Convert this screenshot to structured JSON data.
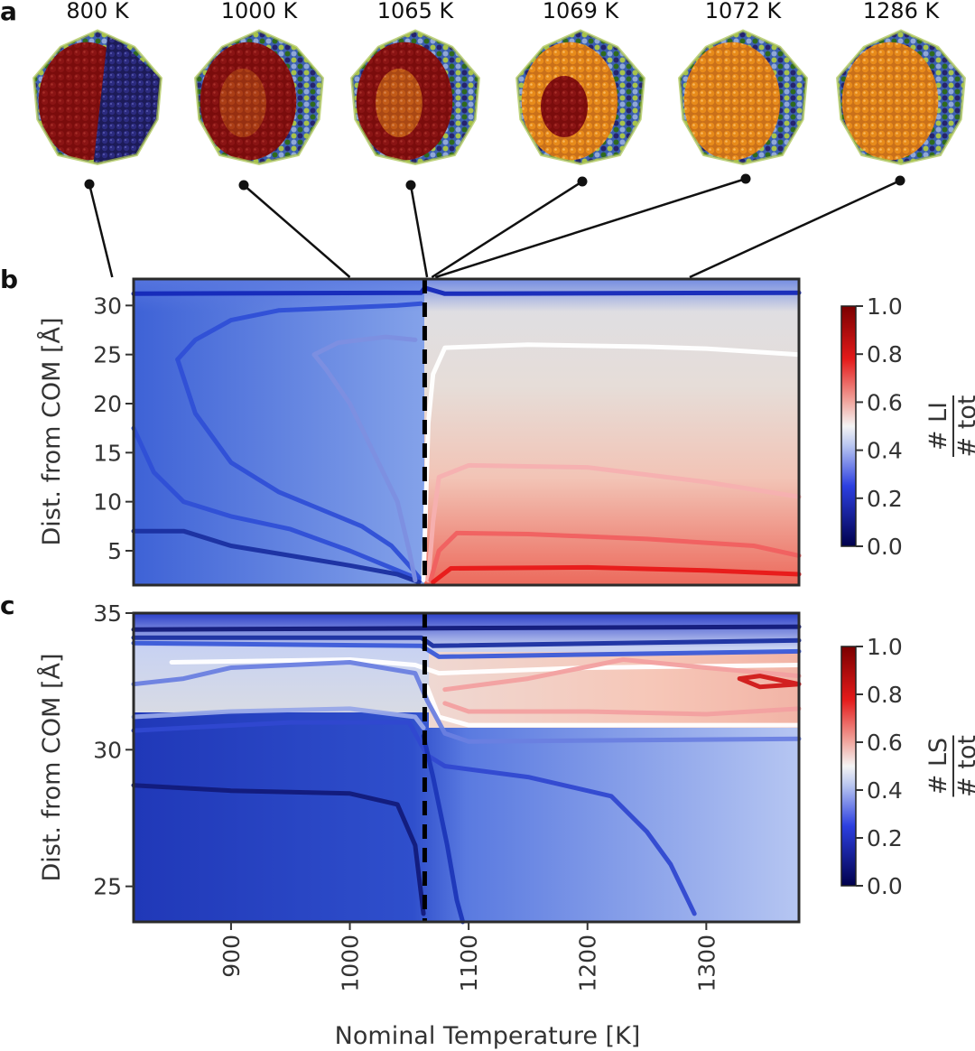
{
  "panel_a": {
    "label": "a",
    "snapshots": [
      {
        "temperature": "800 K",
        "T": 800
      },
      {
        "temperature": "1000 K",
        "T": 1000
      },
      {
        "temperature": "1065 K",
        "T": 1065
      },
      {
        "temperature": "1069 K",
        "T": 1069
      },
      {
        "temperature": "1072 K",
        "T": 1072
      },
      {
        "temperature": "1286 K",
        "T": 1286
      }
    ],
    "colors": {
      "dark_red": "#7a0c0c",
      "orange": "#e88b1a",
      "navy": "#25246e",
      "blue": "#3b5fb0",
      "light_blue": "#8fa7d8",
      "green": "#2f6a1f",
      "light_green": "#a7c24a"
    }
  },
  "chart_data": [
    {
      "id": "b",
      "label": "b",
      "type": "heatmap",
      "ylabel": "Dist. from COM [Å]",
      "xlim": [
        818,
        1378
      ],
      "ylim": [
        1.5,
        32.7
      ],
      "yticks": [
        5,
        10,
        15,
        20,
        25,
        30
      ],
      "ytick_labels": [
        "5",
        "10",
        "15",
        "20",
        "25",
        "30"
      ],
      "transition_T": 1063,
      "colorbar": {
        "label_num": "# LI",
        "label_den": "# tot",
        "ticks": [
          0.0,
          0.2,
          0.4,
          0.6,
          0.8,
          1.0
        ],
        "tick_labels": [
          "0.0",
          "0.2",
          "0.4",
          "0.6",
          "0.8",
          "1.0"
        ]
      },
      "contours": [
        {
          "level": 0.1,
          "color": "#1428b8",
          "points": [
            [
              818,
              31.2
            ],
            [
              1060,
              31.3
            ],
            [
              1063,
              31.8
            ],
            [
              1080,
              31.2
            ],
            [
              1378,
              31.3
            ]
          ]
        },
        {
          "level": 0.2,
          "color": "#2f4fd6",
          "points": [
            [
              818,
              17.5
            ],
            [
              835,
              13.0
            ],
            [
              860,
              10.0
            ],
            [
              900,
              8.5
            ],
            [
              950,
              7.2
            ],
            [
              1000,
              5.0
            ],
            [
              1030,
              3.5
            ],
            [
              1050,
              2.5
            ],
            [
              1060,
              2.0
            ]
          ]
        },
        {
          "level": 0.2,
          "color": "#2f4fd6",
          "points": [
            [
              855,
              24.5
            ],
            [
              870,
              26.5
            ],
            [
              900,
              28.5
            ],
            [
              940,
              29.5
            ],
            [
              1000,
              29.8
            ],
            [
              1040,
              30.0
            ],
            [
              1060,
              30.2
            ]
          ]
        },
        {
          "level": 0.2,
          "color": "#2f4fd6",
          "points": [
            [
              855,
              24.5
            ],
            [
              870,
              19.0
            ],
            [
              900,
              14.0
            ],
            [
              940,
              11.0
            ],
            [
              980,
              9.0
            ],
            [
              1010,
              7.5
            ],
            [
              1035,
              5.5
            ],
            [
              1050,
              3.5
            ],
            [
              1060,
              2.0
            ]
          ]
        },
        {
          "level": 0.1,
          "color": "#1a2fa0",
          "points": [
            [
              818,
              7.0
            ],
            [
              860,
              7.0
            ],
            [
              900,
              5.5
            ],
            [
              950,
              4.5
            ],
            [
              1000,
              3.5
            ],
            [
              1040,
              2.6
            ],
            [
              1058,
              1.8
            ]
          ]
        },
        {
          "level": 0.3,
          "color": "#7d8fe0",
          "points": [
            [
              1055,
              26.5
            ],
            [
              1030,
              26.8
            ],
            [
              990,
              26.2
            ],
            [
              970,
              25.0
            ],
            [
              980,
              23.5
            ],
            [
              1000,
              20.0
            ],
            [
              1020,
              15.0
            ],
            [
              1040,
              10.0
            ],
            [
              1050,
              5.0
            ],
            [
              1055,
              2.0
            ]
          ]
        },
        {
          "level": 0.45,
          "color": "#ffffff",
          "points": [
            [
              1062,
              2.0
            ],
            [
              1064,
              10.0
            ],
            [
              1066,
              18.0
            ],
            [
              1070,
              23.0
            ],
            [
              1080,
              25.7
            ],
            [
              1150,
              26.0
            ],
            [
              1250,
              25.8
            ],
            [
              1300,
              25.6
            ],
            [
              1378,
              25.0
            ]
          ]
        },
        {
          "level": 0.55,
          "color": "#f5b0b0",
          "points": [
            [
              1066,
              2.0
            ],
            [
              1070,
              8.0
            ],
            [
              1075,
              12.5
            ],
            [
              1100,
              13.7
            ],
            [
              1200,
              13.5
            ],
            [
              1300,
              12.0
            ],
            [
              1378,
              10.5
            ]
          ]
        },
        {
          "level": 0.7,
          "color": "#f06060",
          "points": [
            [
              1068,
              2.0
            ],
            [
              1075,
              5.0
            ],
            [
              1090,
              6.8
            ],
            [
              1150,
              6.7
            ],
            [
              1250,
              6.2
            ],
            [
              1340,
              5.5
            ],
            [
              1378,
              4.5
            ]
          ]
        },
        {
          "level": 0.85,
          "color": "#e81818",
          "points": [
            [
              1070,
              1.8
            ],
            [
              1085,
              3.2
            ],
            [
              1200,
              3.3
            ],
            [
              1300,
              3.0
            ],
            [
              1378,
              2.6
            ]
          ]
        }
      ]
    },
    {
      "id": "c",
      "label": "c",
      "type": "heatmap",
      "ylabel": "Dist. from COM [Å]",
      "xlabel": "Nominal Temperature [K]",
      "xlim": [
        818,
        1378
      ],
      "ylim": [
        23.7,
        35.0
      ],
      "xticks": [
        900,
        1000,
        1100,
        1200,
        1300
      ],
      "xtick_labels": [
        "900",
        "1000",
        "1100",
        "1200",
        "1300"
      ],
      "yticks": [
        25,
        30,
        35
      ],
      "ytick_labels": [
        "25",
        "30",
        "35"
      ],
      "transition_T": 1063,
      "colorbar": {
        "label_num": "# LS",
        "label_den": "# tot",
        "ticks": [
          0.0,
          0.2,
          0.4,
          0.6,
          0.8,
          1.0
        ],
        "tick_labels": [
          "0.0",
          "0.2",
          "0.4",
          "0.6",
          "0.8",
          "1.0"
        ]
      },
      "contours": [
        {
          "level": 0.1,
          "color": "#121a7a",
          "points": [
            [
              818,
              34.4
            ],
            [
              1378,
              34.5
            ]
          ]
        },
        {
          "level": 0.15,
          "color": "#1a2fa0",
          "points": [
            [
              818,
              34.1
            ],
            [
              1060,
              34.1
            ],
            [
              1070,
              33.8
            ],
            [
              1378,
              34.0
            ]
          ]
        },
        {
          "level": 0.25,
          "color": "#3a5ad8",
          "points": [
            [
              818,
              33.9
            ],
            [
              1060,
              33.8
            ],
            [
              1075,
              33.4
            ],
            [
              1378,
              33.6
            ]
          ]
        },
        {
          "level": 0.45,
          "color": "#ffffff",
          "points": [
            [
              850,
              33.2
            ],
            [
              1000,
              33.3
            ],
            [
              1055,
              33.1
            ],
            [
              1075,
              32.8
            ],
            [
              1200,
              33.0
            ],
            [
              1378,
              33.1
            ]
          ]
        },
        {
          "level": 0.45,
          "color": "#ffffff",
          "points": [
            [
              1065,
              32.3
            ],
            [
              1075,
              31.2
            ],
            [
              1100,
              30.9
            ],
            [
              1200,
              30.9
            ],
            [
              1378,
              30.9
            ]
          ]
        },
        {
          "level": 0.55,
          "color": "#f2a0a0",
          "points": [
            [
              1080,
              32.2
            ],
            [
              1150,
              32.6
            ],
            [
              1230,
              33.3
            ],
            [
              1300,
              33.0
            ],
            [
              1378,
              32.7
            ]
          ]
        },
        {
          "level": 0.55,
          "color": "#f2a0a0",
          "points": [
            [
              1080,
              31.7
            ],
            [
              1100,
              31.4
            ],
            [
              1200,
              31.4
            ],
            [
              1300,
              31.3
            ],
            [
              1378,
              31.5
            ]
          ]
        },
        {
          "level": 0.8,
          "color": "#d01818",
          "points": [
            [
              1328,
              32.6
            ],
            [
              1345,
              32.3
            ],
            [
              1378,
              32.4
            ],
            [
              1345,
              32.7
            ],
            [
              1328,
              32.6
            ]
          ]
        },
        {
          "level": 0.35,
          "color": "#98a8e8",
          "points": [
            [
              818,
              31.2
            ],
            [
              900,
              31.4
            ],
            [
              1000,
              31.5
            ],
            [
              1055,
              31.2
            ],
            [
              1062,
              30.8
            ]
          ]
        },
        {
          "level": 0.3,
          "color": "#6a80e0",
          "points": [
            [
              818,
              32.4
            ],
            [
              860,
              32.6
            ],
            [
              900,
              33.0
            ],
            [
              1000,
              33.2
            ],
            [
              1055,
              32.8
            ],
            [
              1065,
              31.8
            ],
            [
              1080,
              30.6
            ],
            [
              1100,
              30.3
            ],
            [
              1378,
              30.4
            ]
          ]
        },
        {
          "level": 0.2,
          "color": "#3048d0",
          "points": [
            [
              818,
              30.7
            ],
            [
              950,
              31.0
            ],
            [
              1050,
              31.0
            ],
            [
              1065,
              29.8
            ],
            [
              1080,
              29.4
            ],
            [
              1150,
              29.0
            ],
            [
              1220,
              28.3
            ],
            [
              1250,
              27.0
            ],
            [
              1270,
              25.8
            ],
            [
              1290,
              24.0
            ]
          ]
        },
        {
          "level": 0.1,
          "color": "#121a7a",
          "points": [
            [
              818,
              28.7
            ],
            [
              900,
              28.5
            ],
            [
              1000,
              28.4
            ],
            [
              1040,
              28.0
            ],
            [
              1055,
              26.5
            ],
            [
              1062,
              24.0
            ]
          ]
        },
        {
          "level": 0.15,
          "color": "#1c36b8",
          "points": [
            [
              1062,
              30.5
            ],
            [
              1070,
              29.0
            ],
            [
              1082,
              26.5
            ],
            [
              1090,
              24.5
            ],
            [
              1095,
              23.7
            ]
          ]
        }
      ]
    }
  ]
}
